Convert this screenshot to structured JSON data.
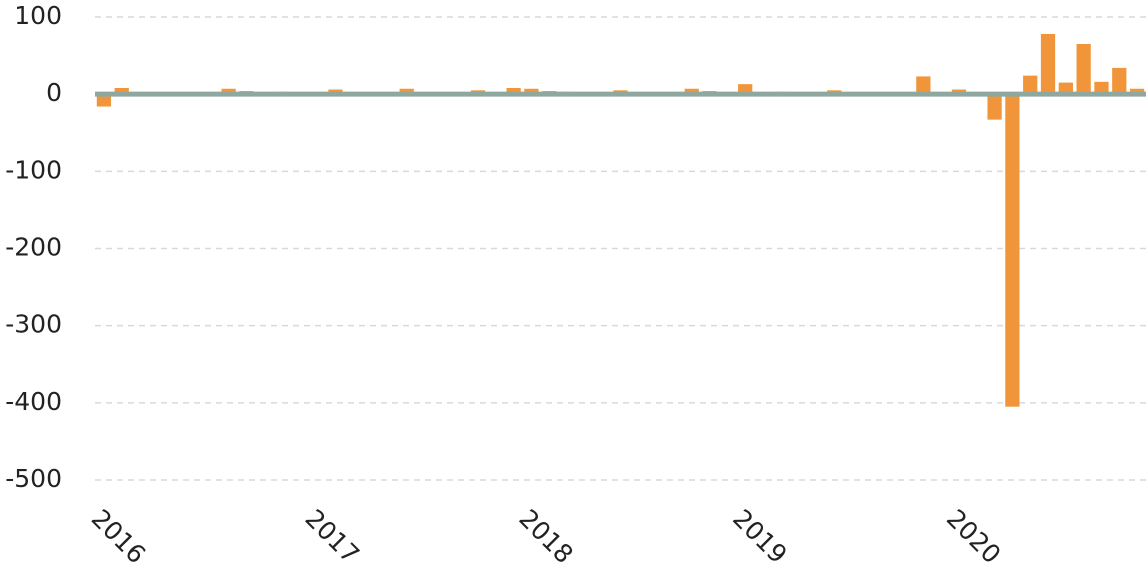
{
  "chart_data": {
    "type": "bar",
    "categories": [
      "2016",
      null,
      null,
      null,
      null,
      null,
      null,
      null,
      null,
      null,
      null,
      null,
      "2017",
      null,
      null,
      null,
      null,
      null,
      null,
      null,
      null,
      null,
      null,
      null,
      "2018",
      null,
      null,
      null,
      null,
      null,
      null,
      null,
      null,
      null,
      null,
      null,
      "2019",
      null,
      null,
      null,
      null,
      null,
      null,
      null,
      null,
      null,
      null,
      null,
      "2020",
      null,
      null,
      null,
      null,
      null,
      null,
      null,
      null,
      null,
      null
    ],
    "values": [
      -16,
      8,
      2,
      1,
      1,
      2,
      2,
      7,
      4,
      1,
      3,
      1,
      1,
      6,
      1,
      1,
      1,
      7,
      1,
      1,
      2,
      5,
      1,
      8,
      7,
      4,
      3,
      1,
      2,
      5,
      2,
      1,
      1,
      7,
      4,
      1,
      13,
      1,
      3,
      1,
      1,
      5,
      1,
      1,
      1,
      1,
      23,
      1,
      6,
      2,
      -33,
      -405,
      24,
      78,
      15,
      65,
      16,
      34,
      7
    ],
    "color": "#f0953a",
    "ylim": [
      -500,
      100
    ],
    "yticks": [
      -500,
      -400,
      -300,
      -200,
      -100,
      0,
      100
    ],
    "grid": true,
    "zero_line_color": "#8fa89f"
  }
}
